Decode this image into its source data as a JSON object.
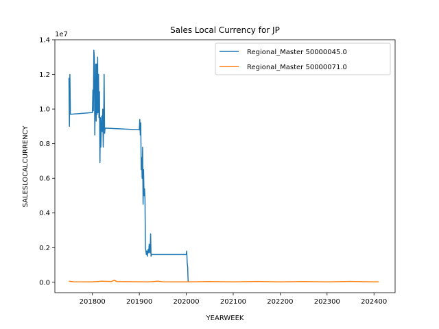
{
  "chart_data": {
    "type": "line",
    "title": "Sales Local Currency for JP",
    "xlabel": "YEARWEEK",
    "ylabel": "SALESLOCALCURRENCY",
    "y_scale_label": "1e7",
    "y_scale": 10000000,
    "xlim": [
      201720,
      202445
    ],
    "ylim": [
      -0.06,
      1.4
    ],
    "x_ticks": [
      201800,
      201900,
      202000,
      202100,
      202200,
      202300,
      202400
    ],
    "y_ticks": [
      0.0,
      0.2,
      0.4,
      0.6,
      0.8,
      1.0,
      1.2,
      1.4
    ],
    "x_tick_labels": [
      "201800",
      "201900",
      "202000",
      "202100",
      "202200",
      "202300",
      "202400"
    ],
    "y_tick_labels": [
      "0.0",
      "0.2",
      "0.4",
      "0.6",
      "0.8",
      "1.0",
      "1.2",
      "1.4"
    ],
    "grid": false,
    "legend_position": "top-right",
    "series": [
      {
        "name": "Regional_Master 50000045.0",
        "color": "#1f77b4",
        "points": [
          [
            201750,
            1.18
          ],
          [
            201751,
            0.9
          ],
          [
            201752,
            1.2
          ],
          [
            201753,
            0.97
          ],
          [
            201800,
            0.98
          ],
          [
            201801,
            1.11
          ],
          [
            201802,
            0.99
          ],
          [
            201803,
            1.34
          ],
          [
            201804,
            1.3
          ],
          [
            201805,
            0.85
          ],
          [
            201806,
            1.02
          ],
          [
            201807,
            1.26
          ],
          [
            201808,
            0.93
          ],
          [
            201809,
            1.26
          ],
          [
            201810,
            0.97
          ],
          [
            201811,
            1.3
          ],
          [
            201812,
            0.98
          ],
          [
            201813,
            1.2
          ],
          [
            201814,
            0.95
          ],
          [
            201815,
            1.1
          ],
          [
            201816,
            0.69
          ],
          [
            201817,
            0.95
          ],
          [
            201818,
            0.78
          ],
          [
            201819,
            0.9
          ],
          [
            201820,
            0.96
          ],
          [
            201821,
            0.87
          ],
          [
            201822,
            1.0
          ],
          [
            201823,
            0.78
          ],
          [
            201824,
            0.95
          ],
          [
            201825,
            1.2
          ],
          [
            201826,
            0.86
          ],
          [
            201827,
            0.89
          ],
          [
            201900,
            0.88
          ],
          [
            201901,
            0.94
          ],
          [
            201902,
            0.85
          ],
          [
            201903,
            0.92
          ],
          [
            201904,
            0.65
          ],
          [
            201905,
            0.72
          ],
          [
            201906,
            0.6
          ],
          [
            201907,
            0.78
          ],
          [
            201908,
            0.45
          ],
          [
            201909,
            0.65
          ],
          [
            201910,
            0.5
          ],
          [
            201911,
            0.54
          ],
          [
            201912,
            0.48
          ],
          [
            201913,
            0.2
          ],
          [
            201914,
            0.18
          ],
          [
            201915,
            0.16
          ],
          [
            201916,
            0.18
          ],
          [
            201917,
            0.15
          ],
          [
            201918,
            0.18
          ],
          [
            201919,
            0.19
          ],
          [
            201920,
            0.17
          ],
          [
            201921,
            0.22
          ],
          [
            201922,
            0.18
          ],
          [
            201923,
            0.17
          ],
          [
            201924,
            0.28
          ],
          [
            201925,
            0.15
          ],
          [
            201926,
            0.16
          ],
          [
            202000,
            0.16
          ],
          [
            202001,
            0.18
          ],
          [
            202002,
            0.11
          ],
          [
            202003,
            0.09
          ],
          [
            202004,
            0.0
          ]
        ]
      },
      {
        "name": "Regional_Master 50000071.0",
        "color": "#ff7f0e",
        "points": [
          [
            201750,
            0.006
          ],
          [
            201760,
            0.003
          ],
          [
            201800,
            0.002
          ],
          [
            201820,
            0.006
          ],
          [
            201840,
            0.004
          ],
          [
            201847,
            0.012
          ],
          [
            201852,
            0.004
          ],
          [
            201900,
            0.003
          ],
          [
            201920,
            0.002
          ],
          [
            201940,
            0.006
          ],
          [
            201950,
            0.003
          ],
          [
            202000,
            0.002
          ],
          [
            202050,
            0.004
          ],
          [
            202100,
            0.002
          ],
          [
            202150,
            0.005
          ],
          [
            202200,
            0.002
          ],
          [
            202250,
            0.004
          ],
          [
            202300,
            0.002
          ],
          [
            202350,
            0.005
          ],
          [
            202400,
            0.002
          ],
          [
            202410,
            0.003
          ]
        ]
      }
    ]
  }
}
